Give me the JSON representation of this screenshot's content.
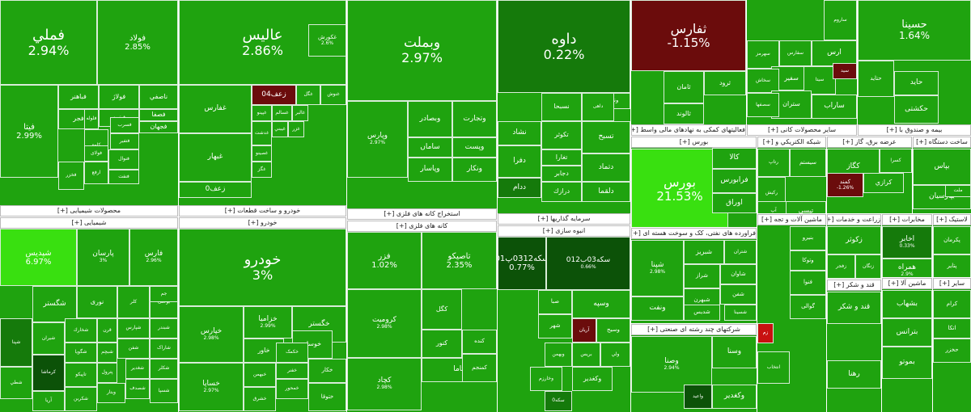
{
  "colors": {
    "green": "#1fa30f",
    "bright_green": "#39e010",
    "medium_green": "#157a0b",
    "dark_green": "#0c5208",
    "dark_red": "#6b0c0c",
    "red": "#c81010",
    "header_bg": "#ffffff"
  },
  "sectors": [
    {
      "title": "محصولات شیمیایی [+]",
      "tiles": [
        {
          "name": "فملي",
          "pct": "2.94%",
          "color": "green"
        },
        {
          "name": "فولاد",
          "pct": "2.85%",
          "color": "green"
        },
        {
          "name": "فباهنر",
          "color": "green"
        },
        {
          "name": "فولاژ",
          "color": "green"
        },
        {
          "name": "ناصفي",
          "color": "green"
        },
        {
          "name": "فخوز",
          "color": "green"
        },
        {
          "name": "فجر",
          "color": "green"
        },
        {
          "name": "فلوله",
          "color": "green"
        },
        {
          "name": "فسرب",
          "color": "green"
        },
        {
          "name": "فروز",
          "color": "green"
        },
        {
          "name": "فصفا",
          "color": "green"
        },
        {
          "name": "فجهان",
          "color": "green"
        },
        {
          "name": "فتفير",
          "color": "green"
        },
        {
          "name": "کاوه",
          "color": "green"
        },
        {
          "name": "فولای",
          "color": "green"
        },
        {
          "name": "ارفع",
          "color": "green"
        },
        {
          "name": "فنوال",
          "color": "green"
        },
        {
          "name": "فنفت",
          "color": "green"
        },
        {
          "name": "فيتا",
          "pct": "2.99%",
          "color": "green"
        },
        {
          "name": "فخزر",
          "color": "green"
        }
      ]
    },
    {
      "title": "خودرو و ساخت قطعات [+]",
      "tiles": [
        {
          "name": "عاليس",
          "pct": "2.86%",
          "color": "green"
        },
        {
          "name": "غکورش",
          "pct": "2.6%",
          "color": "green"
        },
        {
          "name": "غشاذر",
          "color": "green"
        },
        {
          "name": "غفارس",
          "color": "green"
        },
        {
          "name": "غبهار",
          "color": "green"
        },
        {
          "name": "زعف04",
          "color": "dark_red"
        },
        {
          "name": "غگل",
          "color": "green"
        },
        {
          "name": "غنوش",
          "color": "green"
        },
        {
          "name": "غپینو",
          "color": "green"
        },
        {
          "name": "غسالم",
          "color": "green"
        },
        {
          "name": "غالبر",
          "color": "green"
        },
        {
          "name": "غدشت",
          "color": "green"
        },
        {
          "name": "غيبني",
          "color": "green"
        },
        {
          "name": "غزر",
          "color": "green"
        },
        {
          "name": "غصينو",
          "color": "green"
        },
        {
          "name": "غگز",
          "color": "green"
        },
        {
          "name": "زعف0",
          "color": "green"
        }
      ]
    },
    {
      "title": "استخراج کانه های فلزی [+]",
      "tiles": [
        {
          "name": "وبملت",
          "pct": "2.97%",
          "color": "green"
        },
        {
          "name": "وپارس",
          "pct": "2.97%",
          "color": "green"
        },
        {
          "name": "وبصادر",
          "color": "green"
        },
        {
          "name": "وتجارت",
          "color": "green"
        },
        {
          "name": "وپست",
          "color": "green"
        },
        {
          "name": "ساماں",
          "color": "green"
        },
        {
          "name": "وپاسار",
          "color": "green"
        },
        {
          "name": "ونکار",
          "color": "green"
        }
      ]
    },
    {
      "title": "سرمایه گذاریها [+]",
      "tiles": [
        {
          "name": "داوه",
          "pct": "0.22%",
          "color": "medium_green"
        },
        {
          "name": "ونیرو",
          "color": "green"
        },
        {
          "name": "نسبحا",
          "color": "green"
        },
        {
          "name": "داهی",
          "color": "green"
        },
        {
          "name": "تسبح",
          "color": "green"
        },
        {
          "name": "نشاد",
          "color": "green"
        },
        {
          "name": "تکوثر",
          "color": "green"
        },
        {
          "name": "تغارا",
          "color": "green"
        },
        {
          "name": "دجابر",
          "color": "green"
        },
        {
          "name": "دفرا",
          "color": "green"
        },
        {
          "name": "ددام",
          "color": "medium_green"
        },
        {
          "name": "درازك",
          "color": "green"
        },
        {
          "name": "دتماد",
          "color": "green"
        },
        {
          "name": "دلقما",
          "color": "green"
        }
      ]
    },
    {
      "title": "فعالیتهای کمکی به نهادهای مالی واسط [+]",
      "tiles": [
        {
          "name": "ثفارس",
          "pct": "-1.15%",
          "color": "dark_red"
        },
        {
          "name": "ثامان",
          "color": "green"
        },
        {
          "name": "ثالوند",
          "color": "green"
        },
        {
          "name": "ثرود",
          "color": "green"
        }
      ]
    },
    {
      "title": "سایر محصولات کانی [+]",
      "tiles": [
        {
          "name": "ساروم",
          "color": "green"
        },
        {
          "name": "ارس",
          "color": "green"
        },
        {
          "name": "ساحان",
          "color": "green"
        },
        {
          "name": "سفارس",
          "color": "green"
        },
        {
          "name": "سهرمز",
          "color": "green"
        },
        {
          "name": "سفیر",
          "color": "green"
        },
        {
          "name": "سیتا",
          "color": "green"
        },
        {
          "name": "سید",
          "color": "dark_red"
        },
        {
          "name": "سخاش",
          "color": "green"
        },
        {
          "name": "ستران",
          "color": "green"
        },
        {
          "name": "سصفها",
          "color": "green"
        },
        {
          "name": "ساراب",
          "color": "green"
        }
      ]
    },
    {
      "title": "بیمه و صندوق با [+]",
      "tiles": [
        {
          "name": "حسينا",
          "pct": "1.64%",
          "color": "green"
        },
        {
          "name": "حاید",
          "color": "green"
        },
        {
          "name": "حکشتی",
          "color": "green"
        },
        {
          "name": "حتايد",
          "color": "green"
        }
      ]
    },
    {
      "title": "بورس [+]",
      "tiles": [
        {
          "name": "بورس",
          "pct": "21.53%",
          "color": "bright_green"
        },
        {
          "name": "کالا",
          "color": "green"
        },
        {
          "name": "فرابورس",
          "color": "green"
        },
        {
          "name": "اوراق",
          "color": "green"
        }
      ]
    },
    {
      "title": "شبكه الکتريكي و [+]",
      "tiles": [
        {
          "name": "رتاپ",
          "color": "green"
        },
        {
          "name": "سیستم",
          "color": "green"
        },
        {
          "name": "رکیش",
          "color": "green"
        },
        {
          "name": "آپ",
          "color": "green"
        },
        {
          "name": "تیسي",
          "color": "green"
        },
        {
          "name": "فن آ",
          "color": "green"
        }
      ]
    },
    {
      "title": "عرضه برق، گاز [+]",
      "tiles": [
        {
          "name": "کگاز",
          "color": "green"
        },
        {
          "name": "کسرا",
          "color": "green"
        },
        {
          "name": "کرازي",
          "color": "green"
        },
        {
          "name": "کمند",
          "pct": "-1.26%",
          "color": "dark_red"
        }
      ]
    },
    {
      "title": "ساخت دستگاه [+]",
      "tiles": [
        {
          "name": "بپاس",
          "color": "green"
        },
        {
          "name": "بپارسيان",
          "color": "green"
        },
        {
          "name": "ملت",
          "color": "green"
        }
      ]
    },
    {
      "title": "لاستیک [+]",
      "tiles": [
        {
          "name": "پکرمان",
          "color": "green"
        },
        {
          "name": "پتاير",
          "color": "green"
        }
      ]
    },
    {
      "title": "مخابرات [+]",
      "tiles": [
        {
          "name": "اخابر",
          "pct": "0.33%",
          "color": "medium_green"
        },
        {
          "name": "همراه",
          "pct": "2.9%",
          "color": "green"
        }
      ]
    },
    {
      "title": "شیمیایی [+]",
      "tiles": [
        {
          "name": "شپديس",
          "pct": "6.97%",
          "color": "bright_green"
        },
        {
          "name": "پارسان",
          "pct": "3%",
          "color": "green"
        },
        {
          "name": "فارس",
          "pct": "2.96%",
          "color": "green"
        },
        {
          "name": "نوری",
          "color": "green"
        },
        {
          "name": "کلر",
          "color": "green"
        },
        {
          "name": "بوعلی",
          "color": "green"
        },
        {
          "name": "جم",
          "color": "green"
        },
        {
          "name": "شگستر",
          "color": "green"
        },
        {
          "name": "شپنا",
          "color": "medium_green"
        },
        {
          "name": "شيران",
          "color": "green"
        },
        {
          "name": "کرماشا",
          "color": "dark_green"
        },
        {
          "name": "شطي",
          "color": "green"
        },
        {
          "name": "آريا",
          "color": "green"
        },
        {
          "name": "شخارك",
          "color": "green"
        },
        {
          "name": "شگويا",
          "color": "green"
        },
        {
          "name": "تاپیکو",
          "color": "green"
        },
        {
          "name": "شکربن",
          "color": "green"
        },
        {
          "name": "قرن",
          "color": "green"
        },
        {
          "name": "شبچم",
          "color": "green"
        },
        {
          "name": "پترول",
          "color": "green"
        },
        {
          "name": "شپارس",
          "color": "green"
        },
        {
          "name": "شفن",
          "color": "green"
        },
        {
          "name": "شبندر",
          "color": "green"
        },
        {
          "name": "شاراک",
          "color": "green"
        },
        {
          "name": "وبتار",
          "color": "green"
        },
        {
          "name": "شغدیر",
          "color": "green"
        },
        {
          "name": "شصدف",
          "color": "green"
        },
        {
          "name": "شکلر",
          "color": "green"
        },
        {
          "name": "شسپا",
          "color": "green"
        }
      ]
    },
    {
      "title": "خودرو [+]",
      "tiles": [
        {
          "name": "خودرو",
          "pct": "3%",
          "color": "green"
        },
        {
          "name": "خپارس",
          "pct": "2.98%",
          "color": "green"
        },
        {
          "name": "خساپا",
          "pct": "2.97%",
          "color": "green"
        },
        {
          "name": "خزامیا",
          "pct": "2.99%",
          "color": "green"
        },
        {
          "name": "خگستر",
          "color": "green"
        },
        {
          "name": "خوساز",
          "color": "green"
        },
        {
          "name": "خاور",
          "color": "green"
        },
        {
          "name": "خبهمن",
          "color": "green"
        },
        {
          "name": "خکمک",
          "color": "green"
        },
        {
          "name": "خفنر",
          "color": "green"
        },
        {
          "name": "خمحور",
          "color": "green"
        },
        {
          "name": "خشرق",
          "color": "green"
        },
        {
          "name": "خكار",
          "color": "green"
        },
        {
          "name": "ختوقا",
          "color": "green"
        }
      ]
    },
    {
      "title": "کانه های فلزی [+]",
      "tiles": [
        {
          "name": "فزر",
          "pct": "1.02%",
          "color": "green"
        },
        {
          "name": "تاصیکو",
          "pct": "2.35%",
          "color": "green"
        },
        {
          "name": "کروميت",
          "pct": "2.98%",
          "color": "green"
        },
        {
          "name": "کگل",
          "color": "green"
        },
        {
          "name": "کچاد",
          "pct": "2.98%",
          "color": "green"
        },
        {
          "name": "کنور",
          "color": "green"
        },
        {
          "name": "کنده",
          "color": "green"
        },
        {
          "name": "کاما",
          "color": "green"
        },
        {
          "name": "کمنجم",
          "color": "green"
        }
      ]
    },
    {
      "title": "انبوه سازی [+]",
      "tiles": [
        {
          "name": "سکه0312پ01",
          "pct": "0.77%",
          "color": "dark_green"
        },
        {
          "name": "سکه03ب012",
          "pct": "0.66%",
          "color": "dark_green"
        },
        {
          "name": "وسپه",
          "color": "green"
        },
        {
          "name": "صبا",
          "color": "green"
        },
        {
          "name": "شهر",
          "color": "green"
        },
        {
          "name": "آريان",
          "color": "dark_red"
        },
        {
          "name": "وسيح",
          "color": "green"
        },
        {
          "name": "وبهمن",
          "color": "green"
        },
        {
          "name": "بریس",
          "color": "green"
        },
        {
          "name": "ولي",
          "color": "green"
        },
        {
          "name": "وبویا",
          "color": "green"
        },
        {
          "name": "وخارزم",
          "color": "green"
        },
        {
          "name": "سكه0",
          "color": "medium_green"
        },
        {
          "name": "وکغدیر",
          "color": "green"
        }
      ]
    },
    {
      "title": "فراورده های نفتی، کک و سوخت هسته ای [+]",
      "tiles": [
        {
          "name": "شپنا",
          "pct": "2.98%",
          "color": "green"
        },
        {
          "name": "شبريز",
          "color": "green"
        },
        {
          "name": "شراز",
          "color": "green"
        },
        {
          "name": "شبهرن",
          "color": "green"
        },
        {
          "name": "شتران",
          "color": "green"
        },
        {
          "name": "شاوان",
          "color": "green"
        },
        {
          "name": "شفن",
          "color": "green"
        },
        {
          "name": "شسینا",
          "color": "green"
        },
        {
          "name": "ونفت",
          "color": "green"
        },
        {
          "name": "شدیس",
          "color": "green"
        }
      ]
    },
    {
      "title": "شرکتهای چند رشته ای صنعتی [+]",
      "tiles": [
        {
          "name": "وصنا",
          "pct": "2.94%",
          "color": "green"
        },
        {
          "name": "واعید",
          "color": "dark_green"
        },
        {
          "name": "وکغدیر",
          "color": "green"
        },
        {
          "name": "وسنا",
          "color": "green"
        }
      ]
    },
    {
      "title": "ماشین آلات و تجه [+]",
      "tiles": [
        {
          "name": "بنیرو",
          "color": "green"
        },
        {
          "name": "وتوکا",
          "color": "green"
        },
        {
          "name": "فنوا",
          "color": "green"
        },
        {
          "name": "انتخاب",
          "color": "green"
        },
        {
          "name": "گوالی",
          "color": "green"
        },
        {
          "name": "زم",
          "color": "red"
        }
      ]
    },
    {
      "title": "زراعت و خدمات [+]",
      "tiles": [
        {
          "name": "زکوثر",
          "color": "green"
        },
        {
          "name": "زفجر",
          "color": "green"
        },
        {
          "name": "زنگان",
          "color": "green"
        }
      ]
    },
    {
      "title": "قند و شکر [+]",
      "tiles": [
        {
          "name": "قند و شکر",
          "color": "green"
        },
        {
          "name": "رهنا",
          "color": "green"
        }
      ]
    },
    {
      "title": "ماشین آلا [+]",
      "tiles": [
        {
          "name": "بشهاب",
          "color": "green"
        },
        {
          "name": "بترانس",
          "color": "green"
        },
        {
          "name": "بموتو",
          "color": "green"
        }
      ]
    },
    {
      "title": "سایر [+]",
      "tiles": [
        {
          "name": "كرام",
          "color": "green"
        },
        {
          "name": "اتكا",
          "color": "green"
        },
        {
          "name": "حخزر",
          "color": "green"
        }
      ]
    }
  ]
}
